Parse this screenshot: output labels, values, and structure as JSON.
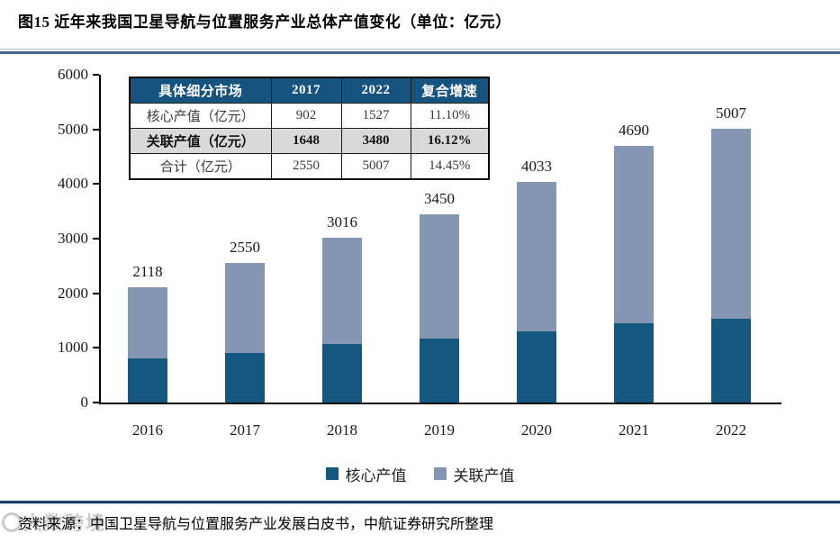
{
  "title": "图15  近年来我国卫星导航与位置服务产业总体产值变化（单位：亿元）",
  "table": {
    "headers": [
      "具体细分市场",
      "2017",
      "2022",
      "复合增速"
    ],
    "rows": [
      {
        "cells": [
          "核心产值（亿元）",
          "902",
          "1527",
          "11.10%"
        ],
        "emphasis": false
      },
      {
        "cells": [
          "关联产值（亿元）",
          "1648",
          "3480",
          "16.12%"
        ],
        "emphasis": true
      },
      {
        "cells": [
          "合计（亿元）",
          "2550",
          "5007",
          "14.45%"
        ],
        "emphasis": false
      }
    ]
  },
  "chart_data": {
    "type": "bar",
    "stacked": true,
    "title": "",
    "xlabel": "",
    "ylabel": "",
    "categories": [
      "2016",
      "2017",
      "2018",
      "2019",
      "2020",
      "2021",
      "2022"
    ],
    "series": [
      {
        "name": "核心产值",
        "color": "#14587f",
        "values": [
          808,
          902,
          1069,
          1166,
          1295,
          1454,
          1527
        ]
      },
      {
        "name": "关联产值",
        "color": "#8496b2",
        "values": [
          1310,
          1648,
          1947,
          2284,
          2738,
          3236,
          3480
        ]
      }
    ],
    "totals": [
      2118,
      2550,
      3016,
      3450,
      4033,
      4690,
      5007
    ],
    "total_labels": [
      "2118",
      "2550",
      "3016",
      "3450",
      "4033",
      "4690",
      "5007"
    ],
    "ylim": [
      0,
      6000
    ],
    "yticks": [
      0,
      1000,
      2000,
      3000,
      4000,
      5000,
      6000
    ],
    "grid": false,
    "legend_position": "bottom"
  },
  "legend": {
    "items": [
      {
        "label": "核心产值",
        "color": "#14587f"
      },
      {
        "label": "关联产值",
        "color": "#8496b2"
      }
    ]
  },
  "footer": {
    "source": "资料来源：中国卫星导航与位置服务产业发展白皮书，中航证券研究所整理"
  },
  "watermark": "大数跨境",
  "colors": {
    "core_bar": "#14587f",
    "associated_bar": "#8496b2",
    "table_header_bg": "#16537e",
    "table_highlight_bg": "#d9d9d9",
    "separator_dark": "#1f3f63",
    "separator_steel": "#46698f",
    "axis": "#000000"
  }
}
